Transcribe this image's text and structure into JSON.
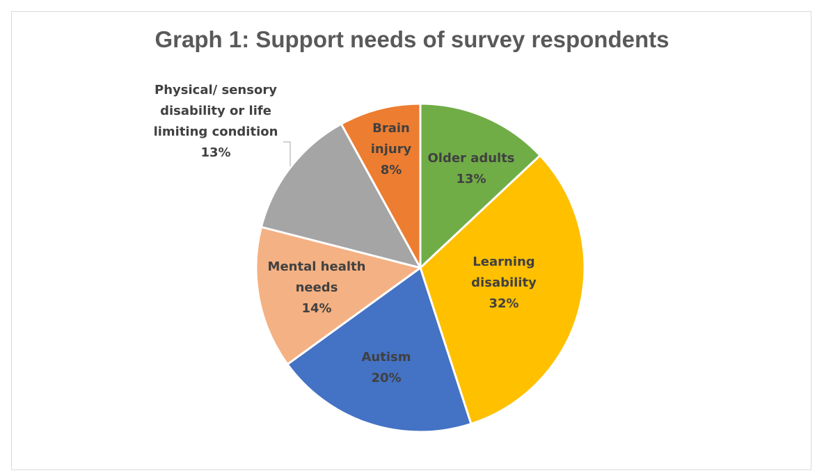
{
  "chart_data": {
    "type": "pie",
    "title": "Graph 1: Support needs of survey respondents",
    "start_angle_deg": 0,
    "direction": "clockwise",
    "slices": [
      {
        "key": "older-adults",
        "label_lines": [
          "Older adults"
        ],
        "value": 13,
        "percent_label": "13%",
        "color": "#70ad47",
        "label_color": "#404040"
      },
      {
        "key": "learning-disability",
        "label_lines": [
          "Learning",
          "disability"
        ],
        "value": 32,
        "percent_label": "32%",
        "color": "#ffc000",
        "label_color": "#404040"
      },
      {
        "key": "autism",
        "label_lines": [
          "Autism"
        ],
        "value": 20,
        "percent_label": "20%",
        "color": "#4472c4",
        "label_color": "#404040"
      },
      {
        "key": "mental-health-needs",
        "label_lines": [
          "Mental health",
          "needs"
        ],
        "value": 14,
        "percent_label": "14%",
        "color": "#f4b183",
        "label_color": "#404040"
      },
      {
        "key": "physical-sensory",
        "label_lines": [
          "Physical/ sensory",
          "disability or life",
          "limiting condition"
        ],
        "value": 13,
        "percent_label": "13%",
        "color": "#a5a5a5",
        "label_color": "#404040",
        "outside": true
      },
      {
        "key": "brain-injury",
        "label_lines": [
          "Brain",
          "injury"
        ],
        "value": 8,
        "percent_label": "8%",
        "color": "#ed7d31",
        "label_color": "#404040"
      }
    ]
  }
}
